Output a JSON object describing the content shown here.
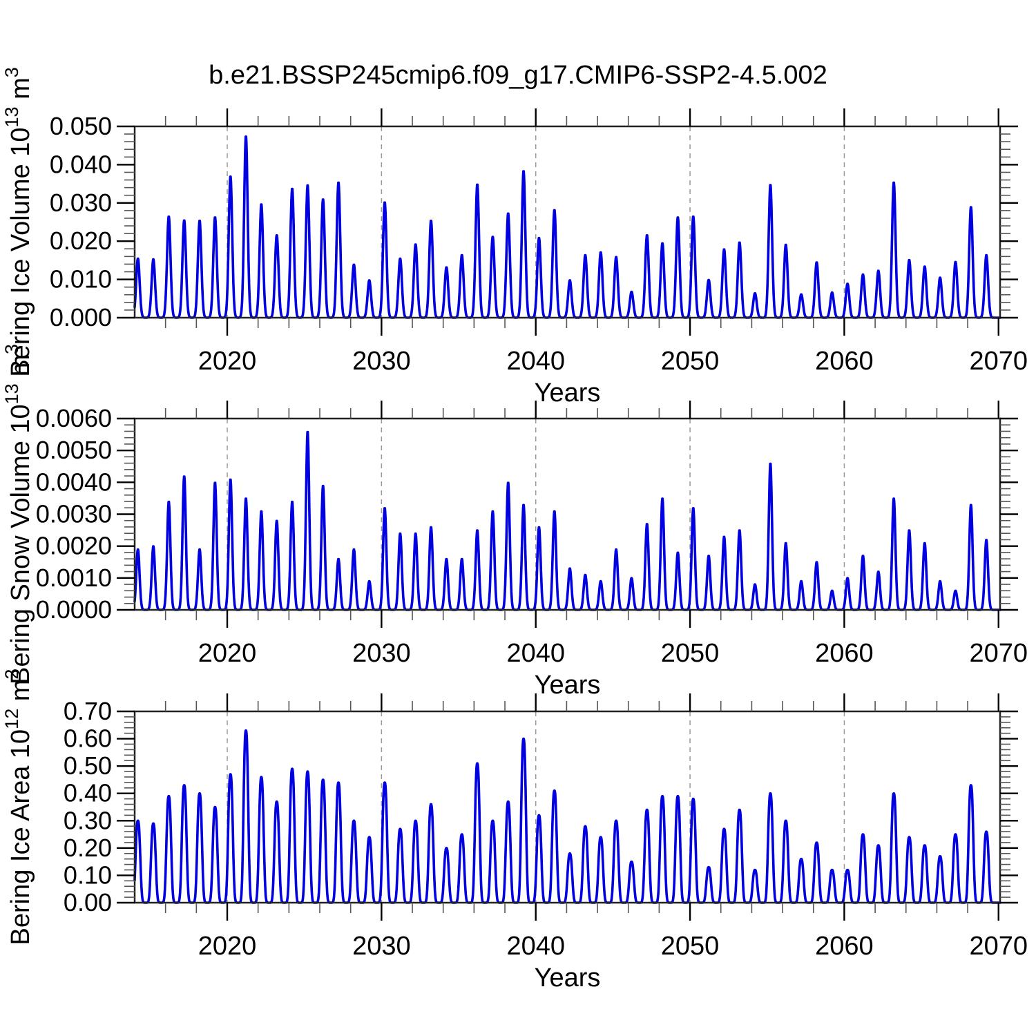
{
  "title": "b.e21.BSSP245cmip6.f09_g17.CMIP6-SSP2-4.5.002",
  "x_axis": {
    "label": "Years",
    "tick_labels": [
      "2020",
      "2030",
      "2040",
      "2050",
      "2060",
      "2070"
    ],
    "major_tick_years": [
      2020,
      2030,
      2040,
      2050,
      2060,
      2070
    ],
    "minor_tick_step_years": 2,
    "gridline_years": [
      2020,
      2030,
      2040,
      2050,
      2060
    ],
    "range": [
      2014,
      2070.1
    ]
  },
  "colors": {
    "line": "#0000e0",
    "grid": "#999999",
    "frame": "#222222",
    "major_tick": "#000000",
    "minor_tick": "#555555",
    "text": "#000000",
    "background": "#ffffff"
  },
  "chart_data": {
    "type": "line",
    "x_label": "Years",
    "x_years": [
      2014,
      2015,
      2016,
      2017,
      2018,
      2019,
      2020,
      2021,
      2022,
      2023,
      2024,
      2025,
      2026,
      2027,
      2028,
      2029,
      2030,
      2031,
      2032,
      2033,
      2034,
      2035,
      2036,
      2037,
      2038,
      2039,
      2040,
      2041,
      2042,
      2043,
      2044,
      2045,
      2046,
      2047,
      2048,
      2049,
      2050,
      2051,
      2052,
      2053,
      2054,
      2055,
      2056,
      2057,
      2058,
      2059,
      2060,
      2061,
      2062,
      2063,
      2064,
      2065,
      2066,
      2067,
      2068,
      2069
    ],
    "seasonality": {
      "peak_time_fraction_of_year": 0.21,
      "summer_minimum": 0.0
    },
    "panels": [
      {
        "name": "bering-ice-volume",
        "ylabel": "Bering Ice Volume 10^13 m^3",
        "ylabel_parts": {
          "main": "Bering Ice Volume 10",
          "sup": "13",
          "unit": " m",
          "unit_sup": "3"
        },
        "ylim": [
          0,
          0.05
        ],
        "ytick_step": 0.01,
        "ytick_labels": [
          "0.000",
          "0.010",
          "0.020",
          "0.030",
          "0.040",
          "0.050"
        ],
        "annual_peak_values": [
          0.0155,
          0.0153,
          0.0265,
          0.0255,
          0.0254,
          0.0263,
          0.037,
          0.0475,
          0.0297,
          0.0216,
          0.0338,
          0.0347,
          0.031,
          0.0354,
          0.0139,
          0.0098,
          0.0302,
          0.0155,
          0.0192,
          0.0254,
          0.0132,
          0.0164,
          0.0349,
          0.0212,
          0.0273,
          0.0384,
          0.0209,
          0.0282,
          0.0098,
          0.0164,
          0.0171,
          0.0159,
          0.0068,
          0.0216,
          0.0195,
          0.0263,
          0.0265,
          0.0099,
          0.0179,
          0.0197,
          0.0064,
          0.0348,
          0.0191,
          0.0061,
          0.0145,
          0.0066,
          0.0089,
          0.0113,
          0.0123,
          0.0354,
          0.0151,
          0.0134,
          0.0105,
          0.0146,
          0.029,
          0.0164
        ]
      },
      {
        "name": "bering-snow-volume",
        "ylabel": "Bering Snow Volume 10^13 m^3",
        "ylabel_parts": {
          "main": "Bering Snow Volume 10",
          "sup": "13",
          "unit": " m",
          "unit_sup": "3"
        },
        "ylim": [
          0,
          0.006
        ],
        "ytick_step": 0.001,
        "ytick_labels": [
          "0.0000",
          "0.0010",
          "0.0020",
          "0.0030",
          "0.0040",
          "0.0050",
          "0.0060"
        ],
        "annual_peak_values": [
          0.0019,
          0.002,
          0.0034,
          0.0042,
          0.0019,
          0.004,
          0.0041,
          0.0035,
          0.0031,
          0.0028,
          0.0034,
          0.0056,
          0.0039,
          0.0016,
          0.0019,
          0.0009,
          0.0032,
          0.0024,
          0.0024,
          0.0026,
          0.0016,
          0.0016,
          0.0025,
          0.0031,
          0.004,
          0.0033,
          0.0026,
          0.0031,
          0.0013,
          0.0011,
          0.0009,
          0.0019,
          0.001,
          0.0027,
          0.0035,
          0.0018,
          0.0032,
          0.0017,
          0.0023,
          0.0025,
          0.0008,
          0.0046,
          0.0021,
          0.0009,
          0.0015,
          0.0006,
          0.001,
          0.0017,
          0.0012,
          0.0035,
          0.0025,
          0.0021,
          0.0009,
          0.0006,
          0.0033,
          0.0022
        ]
      },
      {
        "name": "bering-ice-area",
        "ylabel": "Bering Ice Area 10^12 m^2",
        "ylabel_parts": {
          "main": "Bering Ice Area 10",
          "sup": "12",
          "unit": " m",
          "unit_sup": "2"
        },
        "ylim": [
          0,
          0.7
        ],
        "ytick_step": 0.1,
        "ytick_labels": [
          "0.00",
          "0.10",
          "0.20",
          "0.30",
          "0.40",
          "0.50",
          "0.60",
          "0.70"
        ],
        "annual_peak_values": [
          0.3,
          0.29,
          0.39,
          0.43,
          0.4,
          0.35,
          0.47,
          0.63,
          0.46,
          0.37,
          0.49,
          0.48,
          0.45,
          0.44,
          0.3,
          0.24,
          0.44,
          0.27,
          0.3,
          0.36,
          0.2,
          0.25,
          0.51,
          0.3,
          0.37,
          0.6,
          0.32,
          0.41,
          0.18,
          0.28,
          0.24,
          0.3,
          0.15,
          0.34,
          0.39,
          0.39,
          0.38,
          0.13,
          0.27,
          0.34,
          0.12,
          0.4,
          0.3,
          0.16,
          0.22,
          0.12,
          0.12,
          0.25,
          0.21,
          0.4,
          0.24,
          0.21,
          0.17,
          0.25,
          0.43,
          0.26
        ]
      }
    ]
  }
}
